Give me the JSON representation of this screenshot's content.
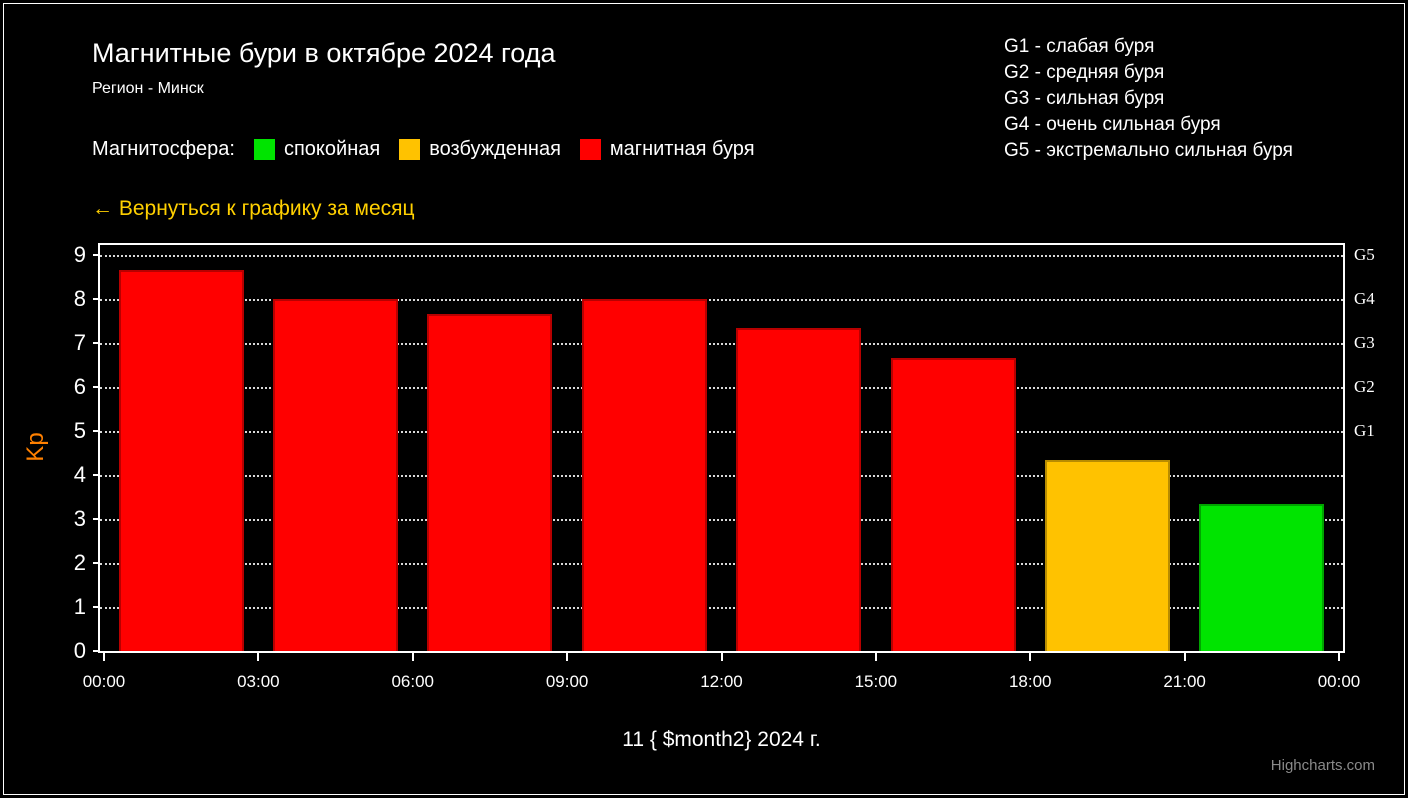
{
  "header": {
    "title": "Магнитные бури в октябре 2024 года",
    "subtitle": "Регион - Минск",
    "storm_scale": [
      "G1 - слабая буря",
      "G2 - средняя буря",
      "G3 - сильная буря",
      "G4 - очень сильная буря",
      "G5 - экстремально сильная буря"
    ],
    "legend": {
      "label": "Магнитосфера:",
      "items": [
        {
          "label": "спокойная",
          "color": "#00e400"
        },
        {
          "label": "возбужденная",
          "color": "#ffc200"
        },
        {
          "label": "магнитная буря",
          "color": "#ff0000"
        }
      ]
    },
    "back_link": "← Вернуться к графику за месяц"
  },
  "chart_data": {
    "type": "bar",
    "title": "Магнитные бури в октябре 2024 года",
    "x_tick_labels": [
      "00:00",
      "03:00",
      "06:00",
      "09:00",
      "12:00",
      "15:00",
      "18:00",
      "21:00",
      "00:00"
    ],
    "values": [
      8.67,
      8,
      7.67,
      8,
      7.33,
      6.67,
      4.33,
      3.33
    ],
    "bar_colors": [
      "#ff0000",
      "#ff0000",
      "#ff0000",
      "#ff0000",
      "#ff0000",
      "#ff0000",
      "#ffc200",
      "#00e400"
    ],
    "xlabel": "11 { $month2} 2024 г.",
    "ylabel": "Kp",
    "ylabel_color": "#ff8000",
    "ylim": [
      0,
      9.3
    ],
    "yticks": [
      0,
      1,
      2,
      3,
      4,
      5,
      6,
      7,
      8,
      9
    ],
    "right_axis_ticks": [
      {
        "value": 5,
        "label": "G1"
      },
      {
        "value": 6,
        "label": "G2"
      },
      {
        "value": 7,
        "label": "G3"
      },
      {
        "value": 8,
        "label": "G4"
      },
      {
        "value": 9,
        "label": "G5"
      }
    ],
    "grid": "horizontal dotted",
    "legend_position": "top-left",
    "background": "#000000"
  },
  "credit": "Highcharts.com"
}
